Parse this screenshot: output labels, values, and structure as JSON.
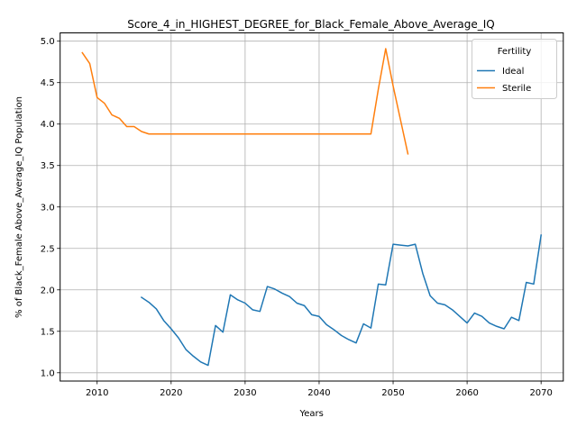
{
  "chart_data": {
    "type": "line",
    "title": "Score_4_in_HIGHEST_DEGREE_for_Black_Female_Above_Average_IQ",
    "xlabel": "Years",
    "ylabel": "% of Black_Female Above_Average_IQ Population",
    "xlim": [
      2005,
      2073
    ],
    "ylim": [
      0.9,
      5.1
    ],
    "x_ticks": [
      2010,
      2020,
      2030,
      2040,
      2050,
      2060,
      2070
    ],
    "y_ticks": [
      1.0,
      1.5,
      2.0,
      2.5,
      3.0,
      3.5,
      4.0,
      4.5,
      5.0
    ],
    "y_tick_labels": [
      "1.0",
      "1.5",
      "2.0",
      "2.5",
      "3.0",
      "3.5",
      "4.0",
      "4.5",
      "5.0"
    ],
    "grid": true,
    "legend": {
      "title": "Fertility",
      "placement": "top-right"
    },
    "series": [
      {
        "name": "Ideal",
        "color": "#1f77b4",
        "x": [
          2016,
          2017,
          2018,
          2019,
          2020,
          2021,
          2022,
          2023,
          2024,
          2025,
          2026,
          2027,
          2028,
          2029,
          2030,
          2031,
          2032,
          2033,
          2034,
          2035,
          2036,
          2037,
          2038,
          2039,
          2040,
          2041,
          2042,
          2043,
          2044,
          2045,
          2046,
          2047,
          2048,
          2049,
          2050,
          2051,
          2052,
          2053,
          2054,
          2055,
          2056,
          2057,
          2058,
          2059,
          2060,
          2061,
          2062,
          2063,
          2064,
          2065,
          2066,
          2067,
          2068,
          2069,
          2070
        ],
        "y": [
          1.91,
          1.85,
          1.77,
          1.63,
          1.53,
          1.42,
          1.28,
          1.2,
          1.13,
          1.09,
          1.57,
          1.49,
          1.94,
          1.88,
          1.84,
          1.76,
          1.74,
          2.04,
          2.01,
          1.96,
          1.92,
          1.84,
          1.81,
          1.7,
          1.68,
          1.58,
          1.52,
          1.45,
          1.4,
          1.36,
          1.59,
          1.54,
          2.07,
          2.06,
          2.55,
          2.54,
          2.53,
          2.55,
          2.2,
          1.93,
          1.84,
          1.82,
          1.76,
          1.68,
          1.6,
          1.72,
          1.68,
          1.6,
          1.56,
          1.53,
          1.67,
          1.63,
          2.09,
          2.07,
          2.66
        ]
      },
      {
        "name": "Sterile",
        "color": "#ff7f0e",
        "x": [
          2008,
          2009,
          2010,
          2011,
          2012,
          2013,
          2014,
          2015,
          2016,
          2017,
          2018,
          2019,
          2020,
          2021,
          2022,
          2023,
          2024,
          2025,
          2026,
          2027,
          2028,
          2029,
          2030,
          2031,
          2032,
          2033,
          2034,
          2035,
          2036,
          2037,
          2038,
          2039,
          2040,
          2041,
          2042,
          2043,
          2044,
          2045,
          2046,
          2047,
          2048,
          2049,
          2050,
          2051,
          2052
        ],
        "y": [
          4.86,
          4.73,
          4.32,
          4.25,
          4.11,
          4.07,
          3.97,
          3.97,
          3.91,
          3.88,
          3.88,
          3.88,
          3.88,
          3.88,
          3.88,
          3.88,
          3.88,
          3.88,
          3.88,
          3.88,
          3.88,
          3.88,
          3.88,
          3.88,
          3.88,
          3.88,
          3.88,
          3.88,
          3.88,
          3.88,
          3.88,
          3.88,
          3.88,
          3.88,
          3.88,
          3.88,
          3.88,
          3.88,
          3.88,
          3.88,
          4.42,
          4.91,
          4.46,
          4.05,
          3.64
        ]
      }
    ]
  }
}
